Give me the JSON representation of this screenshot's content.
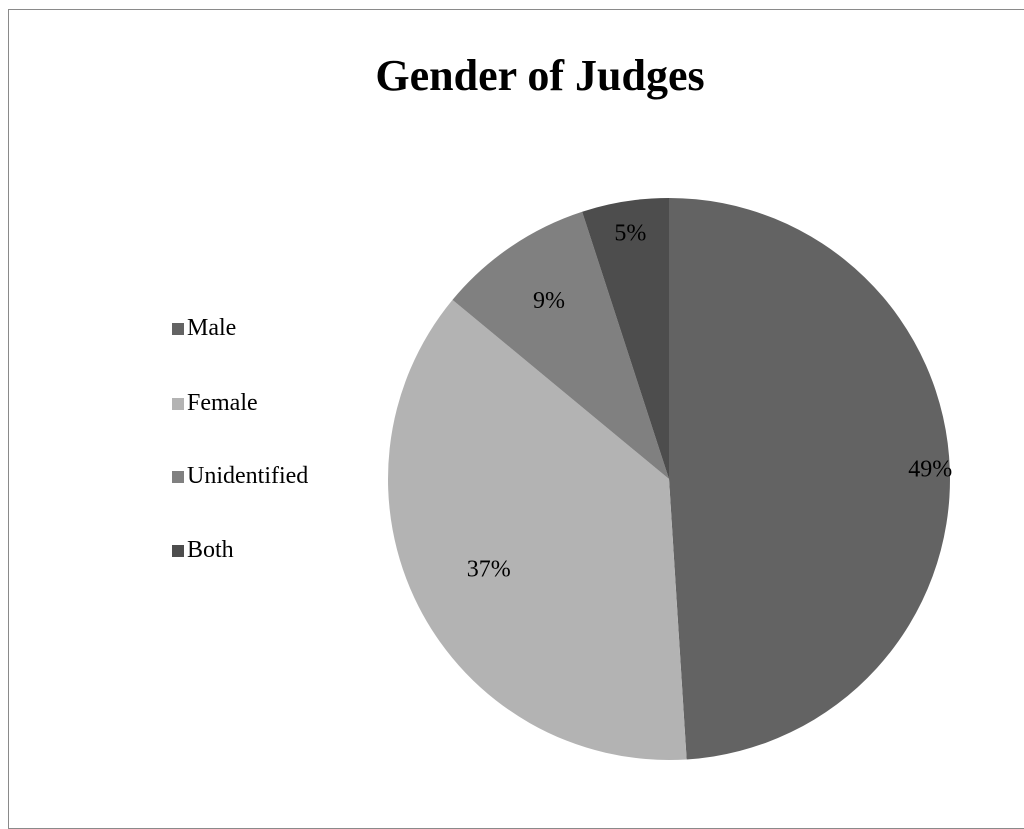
{
  "chart_data": {
    "type": "pie",
    "title": "Gender of Judges",
    "categories": [
      "Male",
      "Female",
      "Unidentified",
      "Both"
    ],
    "values": [
      49,
      37,
      9,
      5
    ],
    "data_labels": [
      "49%",
      "37%",
      "9%",
      "5%"
    ],
    "colors": [
      "#636363",
      "#b3b3b3",
      "#808080",
      "#4d4d4d"
    ],
    "legend_position": "left",
    "start_angle": "top, clockwise"
  }
}
